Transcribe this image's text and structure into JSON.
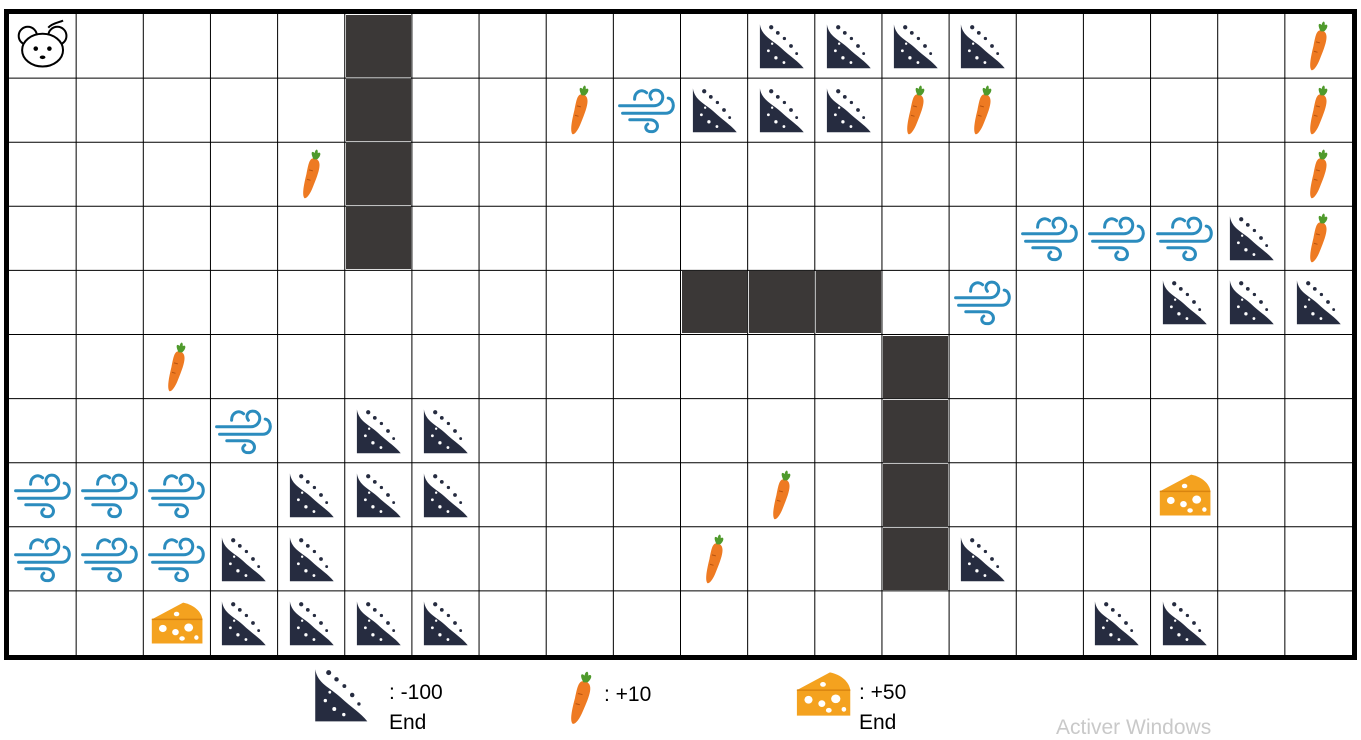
{
  "grid": {
    "rows": 10,
    "cols": 20
  },
  "colors": {
    "wall": "#3b3837",
    "pit": "#262c40",
    "carrot": "#ee7a22",
    "carrot_leaf": "#4f9a2c",
    "wind": "#2b8cbe",
    "cheese": "#f4a21f",
    "grid_line": "#000000"
  },
  "agent": {
    "icon": "mouse-icon",
    "row": 0,
    "col": 0
  },
  "cells": [
    {
      "type": "wall",
      "row": 0,
      "col": 5
    },
    {
      "type": "wall",
      "row": 1,
      "col": 5
    },
    {
      "type": "wall",
      "row": 2,
      "col": 5
    },
    {
      "type": "wall",
      "row": 3,
      "col": 5
    },
    {
      "type": "wall",
      "row": 4,
      "col": 10
    },
    {
      "type": "wall",
      "row": 4,
      "col": 11
    },
    {
      "type": "wall",
      "row": 4,
      "col": 12
    },
    {
      "type": "wall",
      "row": 5,
      "col": 13
    },
    {
      "type": "wall",
      "row": 6,
      "col": 13
    },
    {
      "type": "wall",
      "row": 7,
      "col": 13
    },
    {
      "type": "wall",
      "row": 8,
      "col": 13
    },
    {
      "type": "pit",
      "row": 0,
      "col": 11
    },
    {
      "type": "pit",
      "row": 0,
      "col": 12
    },
    {
      "type": "pit",
      "row": 0,
      "col": 13
    },
    {
      "type": "pit",
      "row": 0,
      "col": 14
    },
    {
      "type": "pit",
      "row": 1,
      "col": 10
    },
    {
      "type": "pit",
      "row": 1,
      "col": 11
    },
    {
      "type": "pit",
      "row": 1,
      "col": 12
    },
    {
      "type": "pit",
      "row": 3,
      "col": 18
    },
    {
      "type": "pit",
      "row": 4,
      "col": 17
    },
    {
      "type": "pit",
      "row": 4,
      "col": 18
    },
    {
      "type": "pit",
      "row": 4,
      "col": 19
    },
    {
      "type": "pit",
      "row": 6,
      "col": 5
    },
    {
      "type": "pit",
      "row": 6,
      "col": 6
    },
    {
      "type": "pit",
      "row": 7,
      "col": 4
    },
    {
      "type": "pit",
      "row": 7,
      "col": 5
    },
    {
      "type": "pit",
      "row": 7,
      "col": 6
    },
    {
      "type": "pit",
      "row": 8,
      "col": 3
    },
    {
      "type": "pit",
      "row": 8,
      "col": 4
    },
    {
      "type": "pit",
      "row": 8,
      "col": 14
    },
    {
      "type": "pit",
      "row": 9,
      "col": 3
    },
    {
      "type": "pit",
      "row": 9,
      "col": 4
    },
    {
      "type": "pit",
      "row": 9,
      "col": 5
    },
    {
      "type": "pit",
      "row": 9,
      "col": 6
    },
    {
      "type": "pit",
      "row": 9,
      "col": 16
    },
    {
      "type": "pit",
      "row": 9,
      "col": 17
    },
    {
      "type": "carrot",
      "row": 0,
      "col": 19
    },
    {
      "type": "carrot",
      "row": 1,
      "col": 8
    },
    {
      "type": "carrot",
      "row": 1,
      "col": 13
    },
    {
      "type": "carrot",
      "row": 1,
      "col": 14
    },
    {
      "type": "carrot",
      "row": 1,
      "col": 19
    },
    {
      "type": "carrot",
      "row": 2,
      "col": 4
    },
    {
      "type": "carrot",
      "row": 2,
      "col": 19
    },
    {
      "type": "carrot",
      "row": 3,
      "col": 19
    },
    {
      "type": "carrot",
      "row": 5,
      "col": 2
    },
    {
      "type": "carrot",
      "row": 7,
      "col": 11
    },
    {
      "type": "carrot",
      "row": 8,
      "col": 10
    },
    {
      "type": "wind",
      "row": 1,
      "col": 9
    },
    {
      "type": "wind",
      "row": 3,
      "col": 15
    },
    {
      "type": "wind",
      "row": 3,
      "col": 16
    },
    {
      "type": "wind",
      "row": 3,
      "col": 17
    },
    {
      "type": "wind",
      "row": 4,
      "col": 14
    },
    {
      "type": "wind",
      "row": 6,
      "col": 3
    },
    {
      "type": "wind",
      "row": 7,
      "col": 0
    },
    {
      "type": "wind",
      "row": 7,
      "col": 1
    },
    {
      "type": "wind",
      "row": 7,
      "col": 2
    },
    {
      "type": "wind",
      "row": 8,
      "col": 0
    },
    {
      "type": "wind",
      "row": 8,
      "col": 1
    },
    {
      "type": "wind",
      "row": 8,
      "col": 2
    },
    {
      "type": "cheese",
      "row": 7,
      "col": 17
    },
    {
      "type": "cheese",
      "row": 9,
      "col": 2
    }
  ],
  "legend": [
    {
      "icon": "pit-icon",
      "value": ": -100",
      "note": "End"
    },
    {
      "icon": "carrot-icon",
      "value": ": +10",
      "note": ""
    },
    {
      "icon": "cheese-icon",
      "value": ": +50",
      "note": "End"
    }
  ],
  "watermark": "Activer Windows"
}
